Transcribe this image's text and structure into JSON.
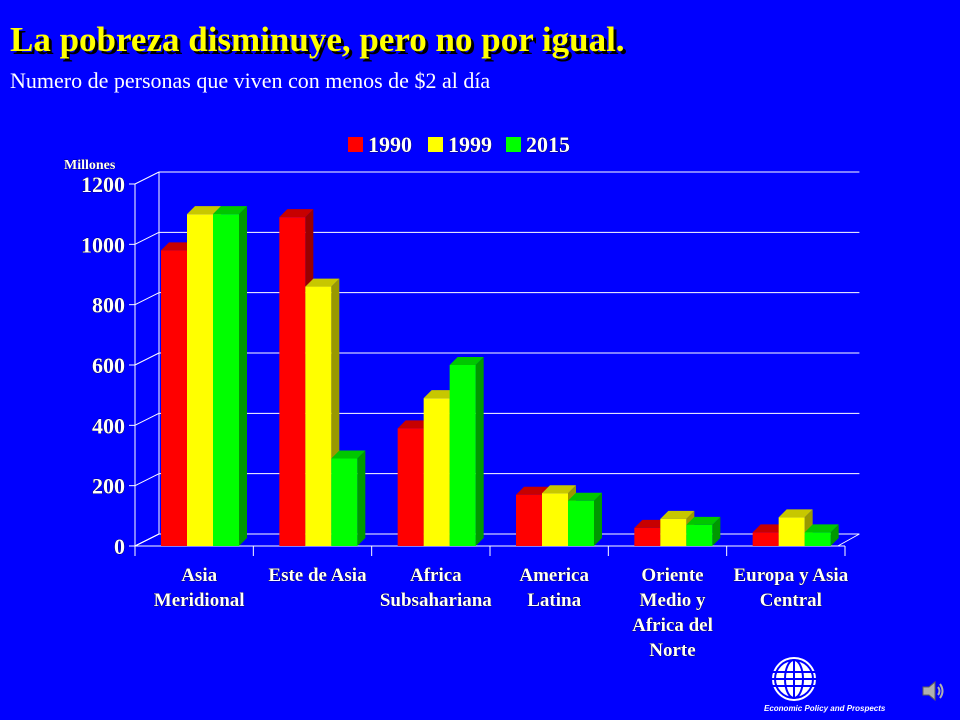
{
  "slide": {
    "title": "La pobreza disminuye, pero no por igual.",
    "subtitle": "Numero de personas que viven con menos de $2 al día",
    "logo_caption": "Economic Policy and Prospects"
  },
  "icons": {
    "logo": "globe-logo-icon",
    "audio": "speaker-icon"
  },
  "colors": {
    "background": "#0000ff",
    "title": "#ffff00",
    "text": "#ffffff"
  },
  "chart_data": {
    "type": "bar",
    "title": "",
    "xlabel": "",
    "ylabel": "Millones",
    "ylim": [
      0,
      1200
    ],
    "yticks": [
      0,
      200,
      400,
      600,
      800,
      1000,
      1200
    ],
    "grid": true,
    "legend_position": "top",
    "categories": [
      [
        "Asia",
        "Meridional"
      ],
      [
        "Este de Asia"
      ],
      [
        "Africa",
        "Subsahariana"
      ],
      [
        "America",
        "Latina"
      ],
      [
        "Oriente",
        "Medio y",
        "Africa del",
        "Norte"
      ],
      [
        "Europa y Asia",
        "Central"
      ]
    ],
    "series": [
      {
        "name": "1990",
        "color": "#ff0000",
        "values": [
          980,
          1090,
          390,
          170,
          60,
          45
        ]
      },
      {
        "name": "1999",
        "color": "#ffff00",
        "values": [
          1100,
          860,
          490,
          175,
          90,
          95
        ]
      },
      {
        "name": "2015",
        "color": "#00ff00",
        "values": [
          1100,
          290,
          600,
          150,
          70,
          45
        ]
      }
    ]
  }
}
